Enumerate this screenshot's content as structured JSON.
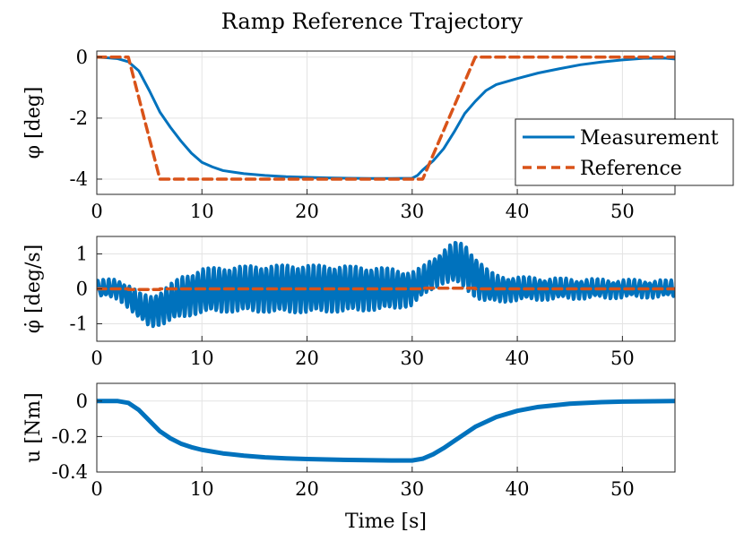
{
  "figure_title": "Ramp Reference Trajectory",
  "colors": {
    "measurement": "#0072BD",
    "reference": "#D95319",
    "grid": "#e3e3e3",
    "axes": "#262626"
  },
  "chart_data": [
    {
      "type": "line",
      "panel": "phi",
      "ylabel": "φ [deg]",
      "xlabel": "",
      "xlim": [
        0,
        55
      ],
      "ylim": [
        -4.5,
        0.2
      ],
      "xticks": [
        0,
        10,
        20,
        30,
        40,
        50
      ],
      "yticks": [
        0,
        -2,
        -4
      ],
      "ytick_labels": [
        "0",
        "-2",
        "-4"
      ],
      "grid": true,
      "legend": {
        "position": "right",
        "entries": [
          "Measurement",
          "Reference"
        ]
      },
      "series": [
        {
          "name": "Measurement",
          "style": "solid",
          "x": [
            0,
            1,
            2,
            3,
            4,
            5,
            6,
            7,
            8,
            9,
            10,
            11,
            12,
            14,
            16,
            18,
            20,
            22,
            24,
            26,
            28,
            30,
            30.5,
            31,
            32,
            33,
            34,
            35,
            36,
            37,
            38,
            40,
            42,
            44,
            46,
            48,
            50,
            52,
            54,
            55
          ],
          "y": [
            0,
            -0.02,
            -0.05,
            -0.15,
            -0.45,
            -1.1,
            -1.8,
            -2.3,
            -2.75,
            -3.15,
            -3.45,
            -3.6,
            -3.72,
            -3.82,
            -3.88,
            -3.92,
            -3.94,
            -3.96,
            -3.97,
            -3.98,
            -3.98,
            -3.97,
            -3.88,
            -3.7,
            -3.4,
            -3.0,
            -2.45,
            -1.85,
            -1.45,
            -1.1,
            -0.9,
            -0.7,
            -0.52,
            -0.38,
            -0.25,
            -0.16,
            -0.09,
            -0.04,
            -0.03,
            -0.06
          ]
        },
        {
          "name": "Reference",
          "style": "dashed",
          "x": [
            0,
            3,
            6,
            31,
            36,
            55
          ],
          "y": [
            0,
            0,
            -4,
            -4,
            0,
            0
          ]
        }
      ]
    },
    {
      "type": "line",
      "panel": "phidot",
      "ylabel": "φ̇ [deg/s]",
      "xlabel": "",
      "xlim": [
        0,
        55
      ],
      "ylim": [
        -1.5,
        1.5
      ],
      "xticks": [
        0,
        10,
        20,
        30,
        40,
        50
      ],
      "yticks": [
        1,
        0,
        -1
      ],
      "ytick_labels": [
        "1",
        "0",
        "-1"
      ],
      "grid": true,
      "series": [
        {
          "name": "Measurement",
          "style": "solid",
          "oscillation_period_s": 0.5,
          "envelope_t": [
            0,
            2,
            3,
            4,
            5,
            6,
            7,
            8,
            10,
            14,
            18,
            20,
            24,
            28,
            30,
            31,
            32,
            33,
            34,
            35,
            36,
            37,
            38,
            40,
            45,
            50,
            55
          ],
          "center": [
            0,
            0,
            -0.2,
            -0.5,
            -0.65,
            -0.55,
            -0.4,
            -0.25,
            -0.05,
            0,
            0,
            0,
            0,
            0,
            0,
            0.2,
            0.45,
            0.65,
            0.75,
            0.65,
            0.35,
            0.1,
            0,
            0,
            0,
            0,
            0
          ],
          "amplitude": [
            0.2,
            0.25,
            0.3,
            0.35,
            0.4,
            0.45,
            0.5,
            0.55,
            0.6,
            0.62,
            0.65,
            0.65,
            0.62,
            0.55,
            0.45,
            0.4,
            0.4,
            0.45,
            0.55,
            0.6,
            0.55,
            0.45,
            0.35,
            0.3,
            0.25,
            0.22,
            0.2
          ]
        },
        {
          "name": "Reference",
          "style": "dashed",
          "x": [
            0,
            3,
            3,
            6,
            6,
            31,
            31,
            36,
            36,
            55
          ],
          "y": [
            0,
            0,
            -0.02,
            -0.02,
            0,
            0,
            0.02,
            0.02,
            0,
            0
          ]
        }
      ]
    },
    {
      "type": "line",
      "panel": "u",
      "ylabel": "u [Nm]",
      "xlabel": "Time [s]",
      "xlim": [
        0,
        55
      ],
      "ylim": [
        -0.4,
        0.1
      ],
      "xticks": [
        0,
        10,
        20,
        30,
        40,
        50
      ],
      "yticks": [
        0,
        -0.2,
        -0.4
      ],
      "ytick_labels": [
        "0",
        "-0.2",
        "-0.4"
      ],
      "grid": true,
      "series": [
        {
          "name": "u",
          "style": "solid",
          "x": [
            0,
            2,
            3,
            4,
            5,
            6,
            7,
            8,
            9,
            10,
            12,
            14,
            16,
            18,
            20,
            24,
            28,
            30,
            31,
            32,
            33,
            34,
            35,
            36,
            38,
            40,
            42,
            45,
            48,
            50,
            55
          ],
          "y": [
            0,
            0,
            -0.01,
            -0.05,
            -0.11,
            -0.17,
            -0.21,
            -0.24,
            -0.26,
            -0.275,
            -0.295,
            -0.308,
            -0.317,
            -0.323,
            -0.327,
            -0.332,
            -0.335,
            -0.335,
            -0.325,
            -0.3,
            -0.265,
            -0.225,
            -0.185,
            -0.145,
            -0.09,
            -0.055,
            -0.033,
            -0.015,
            -0.006,
            -0.003,
            0
          ]
        }
      ]
    }
  ]
}
